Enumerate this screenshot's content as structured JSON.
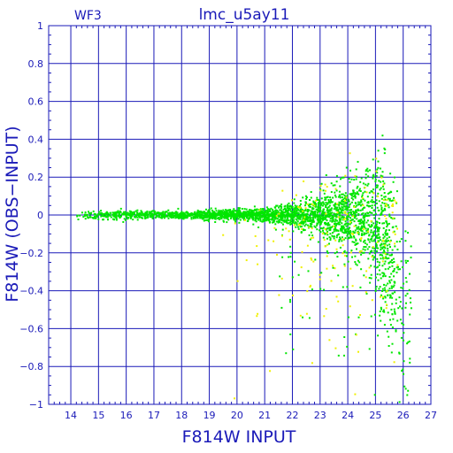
{
  "chart_data": {
    "type": "scatter",
    "title": "lmc_u5ay11",
    "panel_label": "WF3",
    "xlabel": "F814W INPUT",
    "ylabel": "F814W (OBS−INPUT)",
    "xlim": [
      13.2,
      27
    ],
    "ylim": [
      -1,
      1
    ],
    "x_ticks": [
      14,
      15,
      16,
      17,
      18,
      19,
      20,
      21,
      22,
      23,
      24,
      25,
      26,
      27
    ],
    "x_tick_labels": [
      "14",
      "15",
      "16",
      "17",
      "18",
      "19",
      "20",
      "21",
      "22",
      "23",
      "24",
      "25",
      "26",
      "27"
    ],
    "y_ticks": [
      -1,
      -0.8,
      -0.6,
      -0.4,
      -0.2,
      0,
      0.2,
      0.4,
      0.6,
      0.8,
      1
    ],
    "y_tick_labels": [
      "−1",
      "−0.8",
      "−0.6",
      "−0.4",
      "−0.2",
      "0",
      "0.2",
      "0.4",
      "0.6",
      "0.8",
      "1"
    ],
    "grid": true,
    "colors": {
      "axes": "#1a1ab8",
      "primary_points": "#00e600",
      "secondary_points": "#f0f000"
    },
    "series": [
      {
        "color": "#00e600",
        "distribution": {
          "x_range": [
            14,
            26.3
          ],
          "mean_offset": 0.0,
          "scatter_by_magnitude": [
            [
              14,
              0.012
            ],
            [
              18,
              0.01
            ],
            [
              21,
              0.018
            ],
            [
              22,
              0.03
            ],
            [
              23,
              0.05
            ],
            [
              24,
              0.09
            ],
            [
              24.8,
              0.14
            ],
            [
              25.3,
              0.2
            ],
            [
              26,
              0.3
            ]
          ],
          "faint_end_bias": [
            [
              24.6,
              0.0
            ],
            [
              25.2,
              -0.1
            ],
            [
              26.0,
              -0.4
            ]
          ],
          "approx_points": 3000
        }
      },
      {
        "color": "#f0f000",
        "distribution": {
          "x_range": [
            19,
            25.8
          ],
          "concentration": "faint end, mostly below zero",
          "approx_points": 180
        }
      }
    ]
  }
}
